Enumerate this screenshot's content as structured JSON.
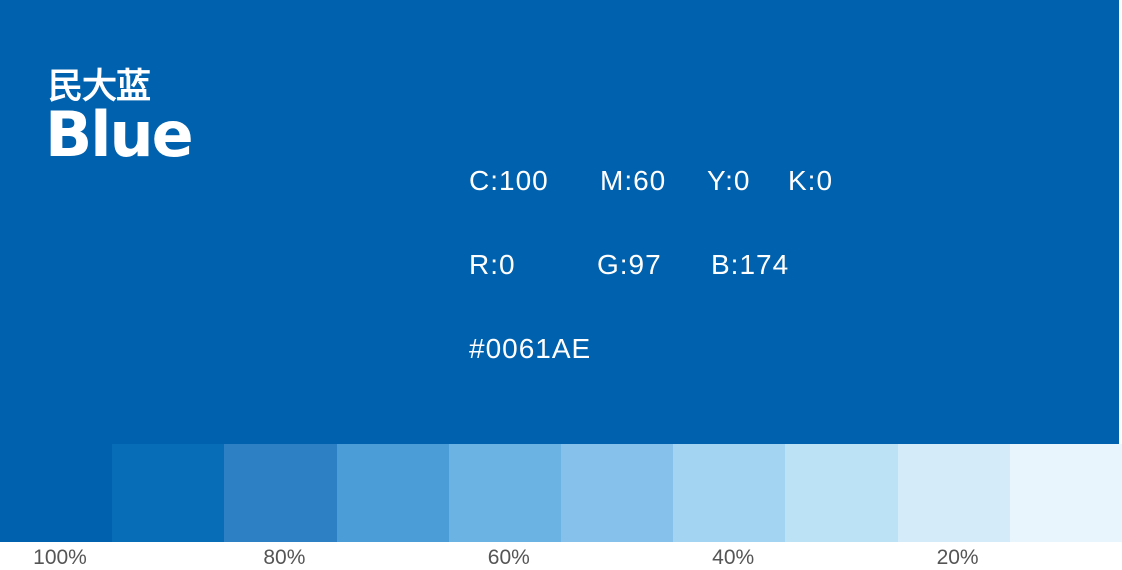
{
  "title_cn": "民大蓝",
  "title_en": "Blue",
  "main_color": "#0061AE",
  "cmyk": {
    "c": "C:100",
    "m": "M:60",
    "y": "Y:0",
    "k": "K:0"
  },
  "rgb": {
    "r": "R:0",
    "g": "G:97",
    "b": "B:174"
  },
  "hex": "#0061AE",
  "swatches": [
    "#0061AE",
    "#066DB6",
    "#2E80C5",
    "#4A9DD7",
    "#6AB3E3",
    "#85C1EB",
    "#A3D4F2",
    "#BCE2F6",
    "#D4EBF9",
    "#E8F5FD"
  ],
  "labels": [
    "100%",
    "80%",
    "60%",
    "40%",
    "20%"
  ]
}
